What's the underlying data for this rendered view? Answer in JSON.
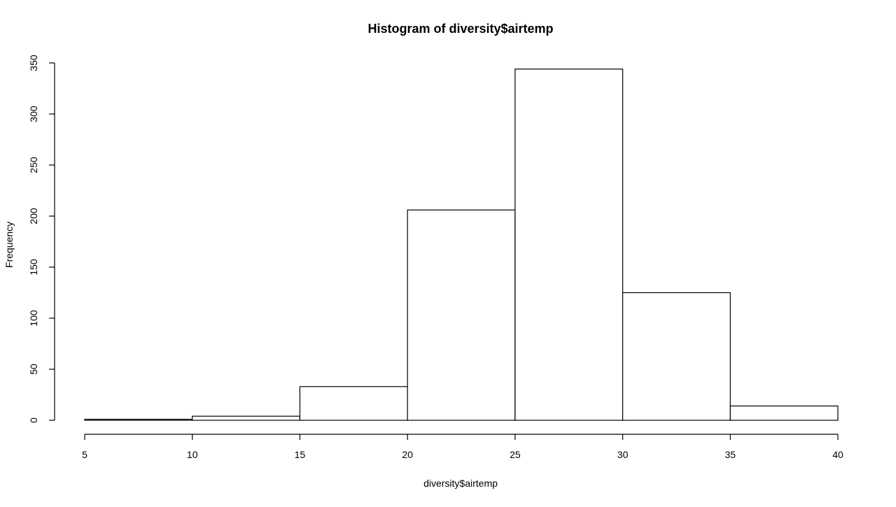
{
  "chart_data": {
    "type": "bar",
    "subtype": "histogram",
    "title": "Histogram of diversity$airtemp",
    "xlabel": "diversity$airtemp",
    "ylabel": "Frequency",
    "bins": [
      {
        "start": 5,
        "end": 10,
        "count": 1
      },
      {
        "start": 10,
        "end": 15,
        "count": 4
      },
      {
        "start": 15,
        "end": 20,
        "count": 33
      },
      {
        "start": 20,
        "end": 25,
        "count": 206
      },
      {
        "start": 25,
        "end": 30,
        "count": 344
      },
      {
        "start": 30,
        "end": 35,
        "count": 125
      },
      {
        "start": 35,
        "end": 40,
        "count": 14
      }
    ],
    "xlim": [
      5,
      40
    ],
    "ylim": [
      0,
      350
    ],
    "x_ticks": [
      5,
      10,
      15,
      20,
      25,
      30,
      35,
      40
    ],
    "y_ticks": [
      0,
      50,
      100,
      150,
      200,
      250,
      300,
      350
    ],
    "grid": false,
    "bar_fill": "#ffffff",
    "bar_stroke": "#000000"
  }
}
